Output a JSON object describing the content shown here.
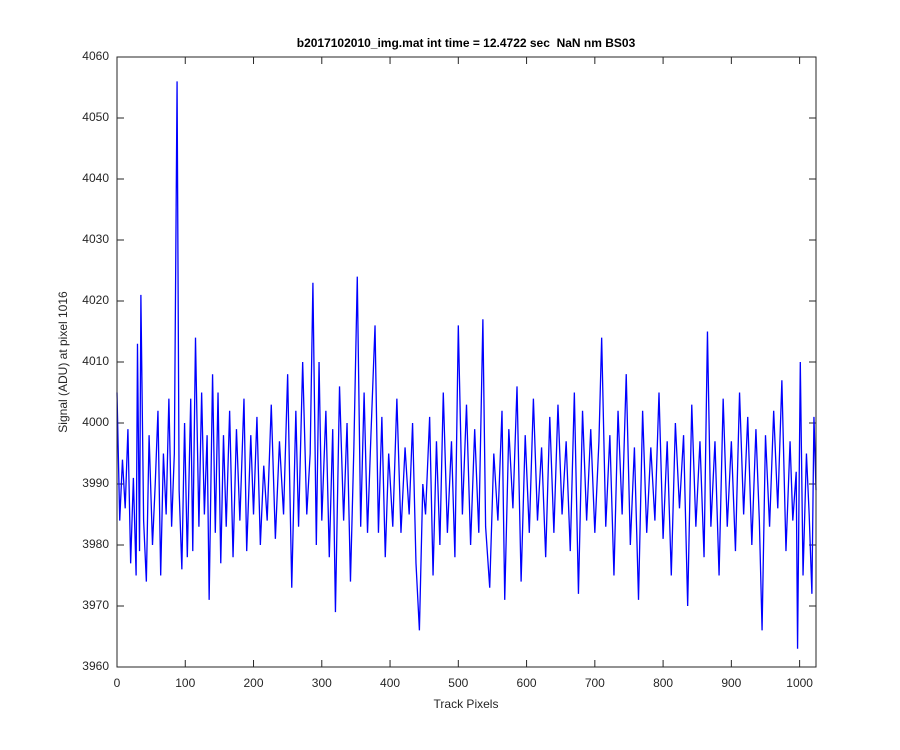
{
  "chart_data": {
    "type": "line",
    "title": "b2017102010_img.mat int time = 12.4722 sec  NaN nm BS03",
    "x_label": "Track Pixels",
    "y_label": "Signal (ADU) at pixel 1016",
    "color": "#0000ff",
    "xlim": [
      0,
      1024
    ],
    "ylim": [
      3960,
      4060
    ],
    "xticks": [
      0,
      100,
      200,
      300,
      400,
      500,
      600,
      700,
      800,
      900,
      1000
    ],
    "yticks": [
      3960,
      3970,
      3980,
      3990,
      4000,
      4010,
      4020,
      4030,
      4040,
      4050,
      4060
    ],
    "x": [
      0,
      4,
      8,
      12,
      16,
      20,
      24,
      28,
      30,
      33,
      35,
      39,
      43,
      47,
      52,
      56,
      60,
      64,
      68,
      72,
      76,
      80,
      84,
      88,
      91,
      95,
      99,
      103,
      108,
      111,
      115,
      120,
      124,
      128,
      132,
      135,
      140,
      144,
      148,
      152,
      156,
      160,
      165,
      170,
      175,
      180,
      186,
      190,
      196,
      200,
      205,
      210,
      215,
      220,
      226,
      232,
      238,
      244,
      250,
      256,
      262,
      266,
      272,
      278,
      283,
      287,
      292,
      296,
      300,
      306,
      311,
      316,
      320,
      326,
      332,
      337,
      342,
      347,
      352,
      357,
      362,
      367,
      372,
      378,
      383,
      388,
      393,
      398,
      404,
      410,
      416,
      422,
      428,
      433,
      438,
      443,
      448,
      452,
      458,
      463,
      468,
      473,
      478,
      484,
      490,
      495,
      500,
      506,
      512,
      518,
      524,
      530,
      536,
      540,
      546,
      552,
      558,
      564,
      568,
      574,
      580,
      586,
      592,
      598,
      604,
      610,
      616,
      622,
      628,
      634,
      640,
      646,
      652,
      658,
      664,
      670,
      676,
      682,
      688,
      694,
      700,
      706,
      710,
      716,
      722,
      728,
      734,
      740,
      746,
      752,
      758,
      764,
      770,
      776,
      782,
      788,
      794,
      800,
      806,
      812,
      818,
      824,
      830,
      836,
      842,
      848,
      854,
      860,
      865,
      870,
      876,
      882,
      888,
      894,
      900,
      906,
      912,
      918,
      924,
      930,
      936,
      941,
      945,
      950,
      956,
      962,
      968,
      974,
      980,
      986,
      990,
      995,
      997,
      1001,
      1005,
      1010,
      1014,
      1018,
      1021,
      1024
    ],
    "values": [
      4005,
      3984,
      3994,
      3986,
      3999,
      3977,
      3991,
      3975,
      4013,
      3979,
      4021,
      3984,
      3974,
      3998,
      3980,
      3990,
      4002,
      3975,
      3995,
      3985,
      4004,
      3983,
      3995,
      4056,
      3989,
      3976,
      4000,
      3978,
      4004,
      3979,
      4014,
      3983,
      4005,
      3985,
      3998,
      3971,
      4008,
      3982,
      4005,
      3977,
      3998,
      3983,
      4002,
      3978,
      3999,
      3984,
      4004,
      3979,
      3998,
      3985,
      4001,
      3980,
      3993,
      3984,
      4003,
      3981,
      3997,
      3985,
      4008,
      3973,
      4002,
      3983,
      4010,
      3985,
      3995,
      4023,
      3980,
      4010,
      3984,
      4002,
      3978,
      3999,
      3969,
      4006,
      3984,
      4000,
      3974,
      3996,
      4024,
      3983,
      4005,
      3982,
      3998,
      4016,
      3982,
      4001,
      3978,
      3995,
      3983,
      4004,
      3982,
      3996,
      3985,
      4000,
      3977,
      3966,
      3990,
      3985,
      4001,
      3975,
      3997,
      3980,
      4005,
      3982,
      3997,
      3978,
      4016,
      3985,
      4003,
      3980,
      3999,
      3982,
      4017,
      3983,
      3973,
      3995,
      3984,
      4002,
      3971,
      3999,
      3986,
      4006,
      3974,
      3998,
      3982,
      4004,
      3984,
      3996,
      3978,
      4001,
      3982,
      4003,
      3985,
      3997,
      3979,
      4005,
      3972,
      4002,
      3984,
      3999,
      3982,
      3997,
      4014,
      3983,
      3998,
      3975,
      4002,
      3985,
      4008,
      3980,
      3996,
      3971,
      4002,
      3982,
      3996,
      3984,
      4005,
      3981,
      3997,
      3975,
      4000,
      3986,
      3998,
      3970,
      4003,
      3983,
      3997,
      3978,
      4015,
      3983,
      3997,
      3975,
      4004,
      3983,
      3997,
      3979,
      4005,
      3985,
      4001,
      3980,
      3999,
      3984,
      3966,
      3998,
      3983,
      4002,
      3986,
      4007,
      3979,
      3997,
      3984,
      3992,
      3963,
      4010,
      3975,
      3995,
      3985,
      3972,
      4001,
      3989
    ]
  }
}
